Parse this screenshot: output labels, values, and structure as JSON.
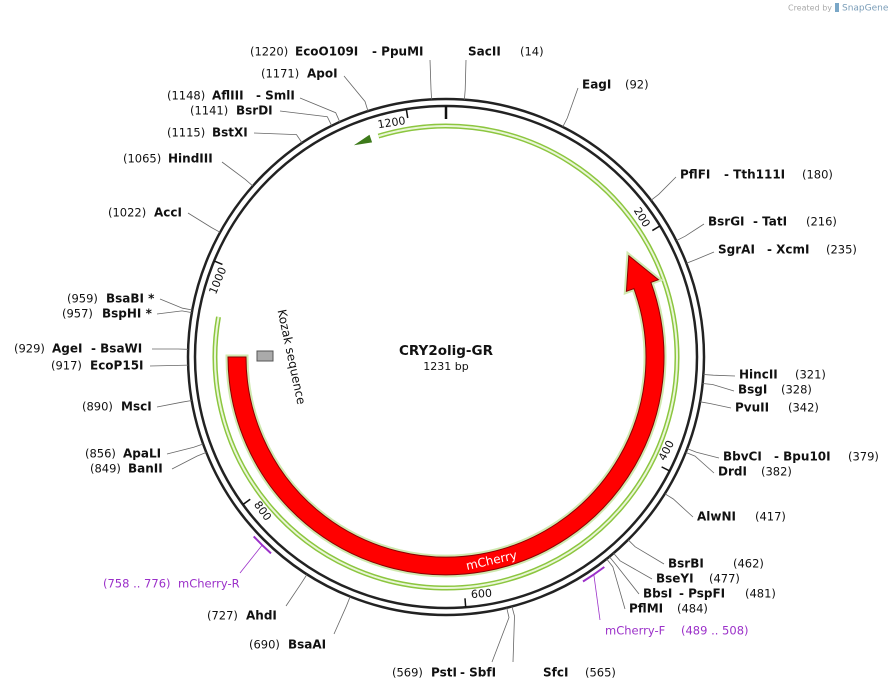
{
  "title": "CRY2olig-GR",
  "length": "1231 bp",
  "watermark": {
    "prefix": "Created by",
    "brand": "SnapGene"
  },
  "sites": [
    {
      "position": "(14)",
      "names": [
        "SacII"
      ]
    },
    {
      "position": "(92)",
      "names": [
        "EagI"
      ]
    },
    {
      "position": "(180)",
      "names": [
        "PflFI",
        "- Tth111I"
      ]
    },
    {
      "position": "(216)",
      "names": [
        "BsrGI",
        "- TatI"
      ]
    },
    {
      "position": "(235)",
      "names": [
        "SgrAI",
        "- XcmI"
      ]
    },
    {
      "position": "(321)",
      "names": [
        "HincII"
      ]
    },
    {
      "position": "(328)",
      "names": [
        "BsgI"
      ]
    },
    {
      "position": "(342)",
      "names": [
        "PvuII"
      ]
    },
    {
      "position": "(379)",
      "names": [
        "BbvCI",
        "- Bpu10I"
      ]
    },
    {
      "position": "(382)",
      "names": [
        "DrdI"
      ]
    },
    {
      "position": "(417)",
      "names": [
        "AlwNI"
      ]
    },
    {
      "position": "(462)",
      "names": [
        "BsrBI"
      ]
    },
    {
      "position": "(477)",
      "names": [
        "BseYI"
      ]
    },
    {
      "position": "(481)",
      "names": [
        "BbsI",
        "- PspFI"
      ]
    },
    {
      "position": "(484)",
      "names": [
        "PflMI"
      ]
    },
    {
      "position": "(565)",
      "names": [
        "SfcI"
      ]
    },
    {
      "position": "(569)",
      "names": [
        "PstI",
        "- SbfI"
      ]
    },
    {
      "position": "(690)",
      "names": [
        "BsaAI"
      ]
    },
    {
      "position": "(727)",
      "names": [
        "AhdI"
      ]
    },
    {
      "position": "(849)",
      "names": [
        "BanII"
      ]
    },
    {
      "position": "(856)",
      "names": [
        "ApaLI"
      ]
    },
    {
      "position": "(890)",
      "names": [
        "MscI"
      ]
    },
    {
      "position": "(917)",
      "names": [
        "EcoP15I"
      ]
    },
    {
      "position": "(929)",
      "names": [
        "AgeI",
        "- BsaWI"
      ]
    },
    {
      "position": "(957)",
      "names": [
        "BspHI *"
      ]
    },
    {
      "position": "(959)",
      "names": [
        "BsaBI *"
      ]
    },
    {
      "position": "(1022)",
      "names": [
        "AccI"
      ]
    },
    {
      "position": "(1065)",
      "names": [
        "HindIII"
      ]
    },
    {
      "position": "(1115)",
      "names": [
        "BstXI"
      ]
    },
    {
      "position": "(1141)",
      "names": [
        "BsrDI"
      ]
    },
    {
      "position": "(1148)",
      "names": [
        "AflIII",
        "- SmlI"
      ]
    },
    {
      "position": "(1171)",
      "names": [
        "ApoI"
      ]
    },
    {
      "position": "(1220)",
      "names": [
        "EcoO109I",
        "- PpuMI"
      ]
    }
  ],
  "primers": [
    {
      "name": "mCherry-F",
      "range": "(489 .. 508)"
    },
    {
      "name": "mCherry-R",
      "range": "(758 .. 776)"
    }
  ],
  "features": [
    {
      "label": "mCherry"
    },
    {
      "label": "Kozak sequence"
    }
  ],
  "ruler": [
    "200",
    "400",
    "600",
    "800",
    "1000",
    "1200"
  ]
}
